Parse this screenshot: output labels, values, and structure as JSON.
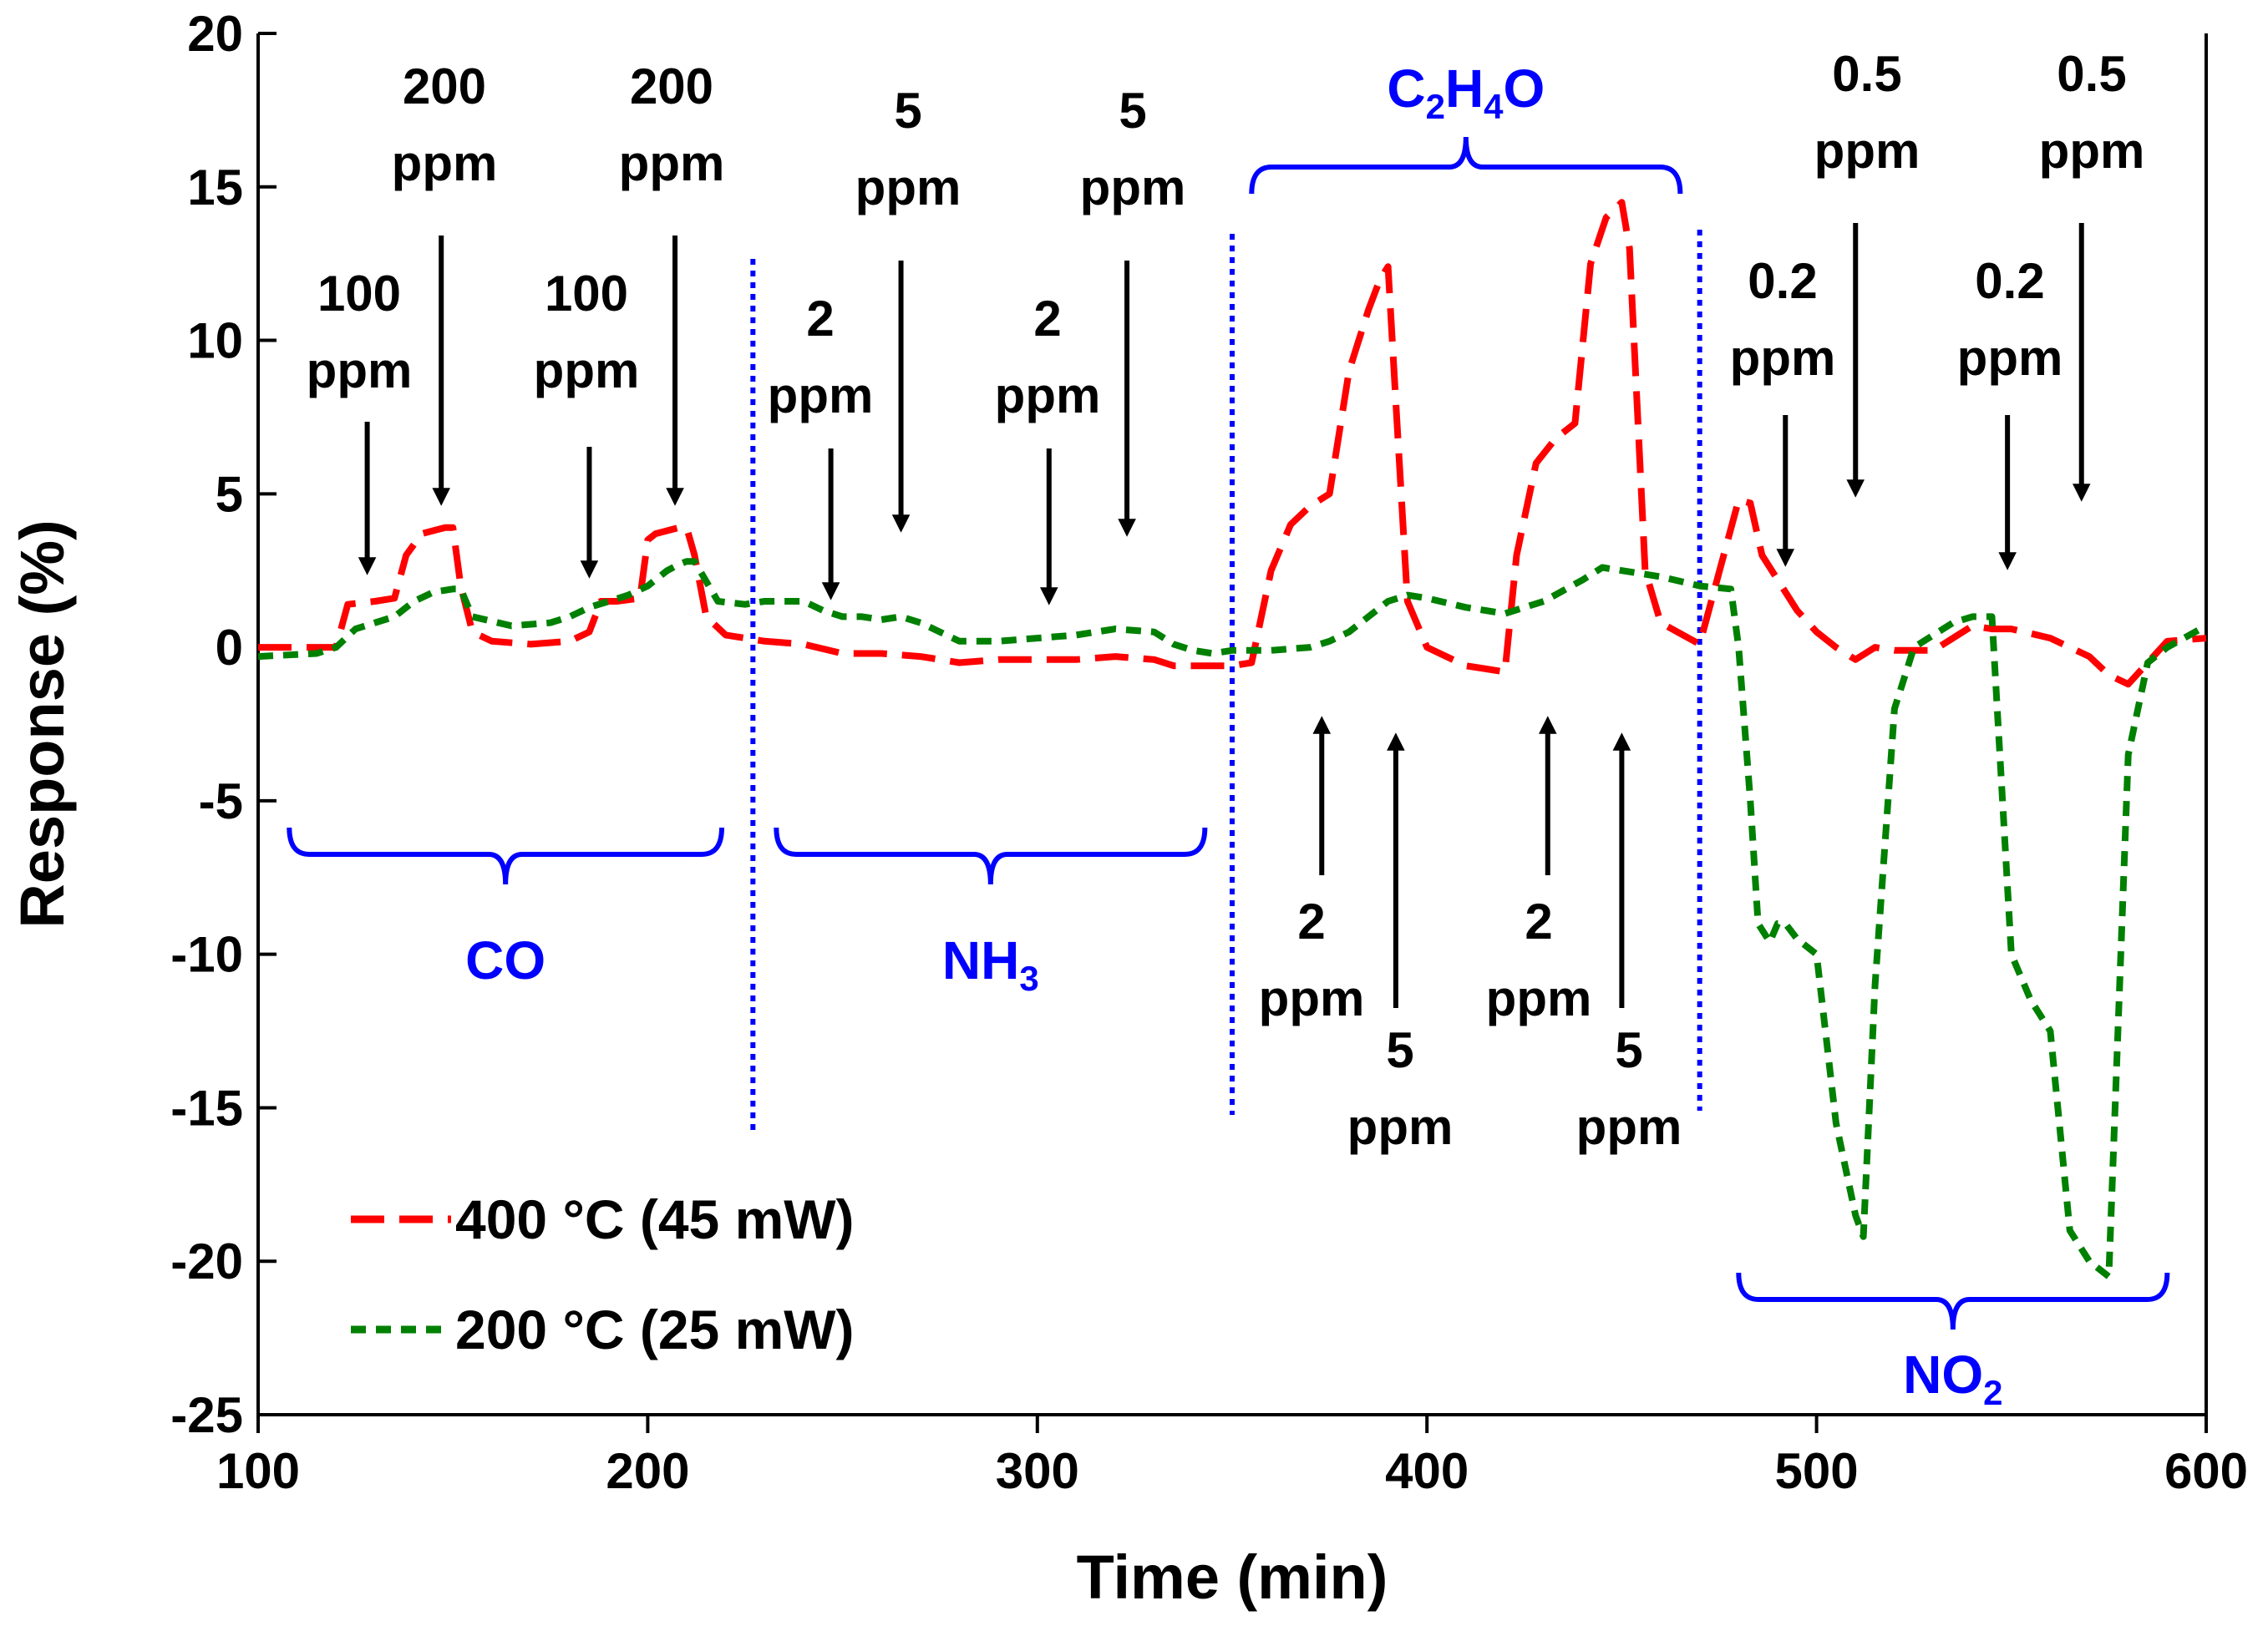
{
  "colors": {
    "series_400": "#ff0000",
    "series_200": "#008000",
    "gas_label": "#0000ff",
    "arrow": "#000000",
    "axis": "#000000"
  },
  "chart_data": {
    "type": "line",
    "title": "",
    "xlabel": "Time (min)",
    "ylabel": "Response (%)",
    "xlim": [
      100,
      600
    ],
    "ylim": [
      -25,
      20
    ],
    "xticks": [
      "100",
      "200",
      "300",
      "400",
      "500",
      "600"
    ],
    "yticks": [
      "20",
      "15",
      "10",
      "5",
      "0",
      "-5",
      "-10",
      "-15",
      "-20",
      "-25"
    ],
    "grid": false,
    "legend_position": "bottom-left",
    "series": [
      {
        "name": "400 °C (45 mW)",
        "style": "long-dash",
        "color": "#ff0000",
        "x": [
          100,
          115,
          120,
          123,
          130,
          135,
          138,
          142,
          145,
          148,
          150,
          152,
          155,
          160,
          170,
          180,
          185,
          188,
          192,
          198,
          200,
          202,
          208,
          210,
          212,
          215,
          220,
          230,
          240,
          250,
          260,
          270,
          280,
          290,
          300,
          310,
          320,
          330,
          335,
          340,
          345,
          350,
          355,
          360,
          365,
          370,
          375,
          380,
          385,
          388,
          390,
          392,
          395,
          400,
          410,
          420,
          423,
          428,
          433,
          438,
          442,
          446,
          450,
          452,
          456,
          460,
          470,
          480,
          483,
          486,
          490,
          495,
          500,
          505,
          510,
          515,
          520,
          530,
          540,
          545,
          550,
          560,
          565,
          570,
          575,
          580,
          590,
          600
        ],
        "y": [
          0,
          0,
          0,
          1.4,
          1.5,
          1.6,
          3.0,
          3.7,
          3.8,
          3.9,
          3.9,
          2.0,
          0.5,
          0.2,
          0.1,
          0.2,
          0.5,
          1.5,
          1.5,
          1.6,
          3.5,
          3.7,
          3.9,
          3.9,
          3.0,
          1.0,
          0.4,
          0.2,
          0.1,
          -0.2,
          -0.2,
          -0.3,
          -0.5,
          -0.4,
          -0.4,
          -0.4,
          -0.3,
          -0.4,
          -0.6,
          -0.6,
          -0.6,
          -0.6,
          -0.5,
          2.5,
          4.0,
          4.6,
          5.0,
          9.0,
          11.0,
          12.0,
          12.4,
          8.0,
          1.5,
          0,
          -0.6,
          -0.8,
          3.0,
          6.0,
          6.8,
          7.3,
          12.5,
          14.0,
          14.5,
          13.0,
          2.5,
          0.8,
          0.1,
          4.8,
          4.7,
          3.0,
          2.2,
          1.2,
          0.5,
          0,
          -0.4,
          0,
          -0.1,
          -0.1,
          0.7,
          0.6,
          0.6,
          0.3,
          0,
          -0.3,
          -0.9,
          -1.2,
          0.2,
          0.3
        ]
      },
      {
        "name": "200 °C (25 mW)",
        "style": "short-dash",
        "color": "#008000",
        "x": [
          100,
          115,
          120,
          125,
          130,
          135,
          140,
          145,
          150,
          152,
          155,
          165,
          175,
          180,
          185,
          190,
          195,
          200,
          205,
          208,
          210,
          212,
          218,
          225,
          230,
          240,
          245,
          250,
          255,
          260,
          265,
          270,
          275,
          280,
          285,
          290,
          300,
          310,
          320,
          330,
          335,
          340,
          345,
          350,
          360,
          370,
          375,
          380,
          385,
          390,
          395,
          400,
          410,
          420,
          430,
          440,
          445,
          450,
          455,
          460,
          470,
          478,
          480,
          483,
          485,
          488,
          490,
          492,
          495,
          500,
          505,
          510,
          512,
          515,
          520,
          525,
          530,
          535,
          540,
          545,
          550,
          555,
          560,
          565,
          570,
          575,
          580,
          585,
          590,
          600
        ],
        "y": [
          -0.3,
          -0.2,
          0,
          0.6,
          0.8,
          1.0,
          1.5,
          1.8,
          1.9,
          1.9,
          1.0,
          0.7,
          0.8,
          1.0,
          1.3,
          1.5,
          1.7,
          2.0,
          2.5,
          2.7,
          2.8,
          2.8,
          1.5,
          1.4,
          1.5,
          1.5,
          1.2,
          1.0,
          1.0,
          0.9,
          1.0,
          0.8,
          0.5,
          0.2,
          0.2,
          0.2,
          0.3,
          0.4,
          0.6,
          0.5,
          0.1,
          -0.1,
          -0.2,
          -0.1,
          -0.1,
          0,
          0.2,
          0.5,
          1.0,
          1.5,
          1.7,
          1.6,
          1.3,
          1.1,
          1.5,
          2.2,
          2.6,
          2.5,
          2.4,
          2.3,
          2.0,
          1.9,
          0,
          -5.0,
          -9.0,
          -9.6,
          -9.0,
          -9.0,
          -9.5,
          -10.0,
          -15.5,
          -18.5,
          -19.2,
          -11.0,
          -2.0,
          0,
          0.4,
          0.8,
          1.0,
          1.0,
          -10.0,
          -11.5,
          -12.5,
          -19.0,
          -20.0,
          -20.5,
          -3.5,
          -0.5,
          0,
          0.7
        ]
      }
    ],
    "annotations": [
      {
        "text": [
          "100",
          "ppm"
        ],
        "x": 128,
        "arrow": "down"
      },
      {
        "text": [
          "200",
          "ppm"
        ],
        "x": 147,
        "arrow": "down"
      },
      {
        "text": [
          "100",
          "ppm"
        ],
        "x": 185,
        "arrow": "down"
      },
      {
        "text": [
          "200",
          "ppm"
        ],
        "x": 207,
        "arrow": "down"
      },
      {
        "text": [
          "2",
          "ppm"
        ],
        "x": 247,
        "arrow": "down"
      },
      {
        "text": [
          "5",
          "ppm"
        ],
        "x": 265,
        "arrow": "down"
      },
      {
        "text": [
          "2",
          "ppm"
        ],
        "x": 303,
        "arrow": "down"
      },
      {
        "text": [
          "5",
          "ppm"
        ],
        "x": 323,
        "arrow": "down"
      },
      {
        "text": [
          "2",
          "ppm"
        ],
        "x": 373,
        "arrow": "up"
      },
      {
        "text": [
          "5",
          "ppm"
        ],
        "x": 392,
        "arrow": "up"
      },
      {
        "text": [
          "2",
          "ppm"
        ],
        "x": 431,
        "arrow": "up"
      },
      {
        "text": [
          "5",
          "ppm"
        ],
        "x": 450,
        "arrow": "up"
      },
      {
        "text": [
          "0.2",
          "ppm"
        ],
        "x": 492,
        "arrow": "down"
      },
      {
        "text": [
          "0.5",
          "ppm"
        ],
        "x": 510,
        "arrow": "down"
      },
      {
        "text": [
          "0.2",
          "ppm"
        ],
        "x": 549,
        "arrow": "down"
      },
      {
        "text": [
          "0.5",
          "ppm"
        ],
        "x": 568,
        "arrow": "down"
      }
    ],
    "gas_groups": [
      {
        "label": "CO",
        "sub": "",
        "x_start": 108,
        "x_end": 219,
        "side": "below"
      },
      {
        "label": "NH",
        "sub": "3",
        "x_start": 233,
        "x_end": 343,
        "side": "below"
      },
      {
        "label": "C2H4O",
        "parts": [
          [
            "C",
            ""
          ],
          [
            "2",
            "sub"
          ],
          [
            "H",
            ""
          ],
          [
            "4",
            "sub"
          ],
          [
            "O",
            ""
          ]
        ],
        "x_start": 355,
        "x_end": 465,
        "side": "above"
      },
      {
        "label": "NO",
        "sub": "2",
        "x_start": 480,
        "x_end": 590,
        "side": "below"
      }
    ],
    "dividers": [
      227,
      350,
      470
    ]
  }
}
